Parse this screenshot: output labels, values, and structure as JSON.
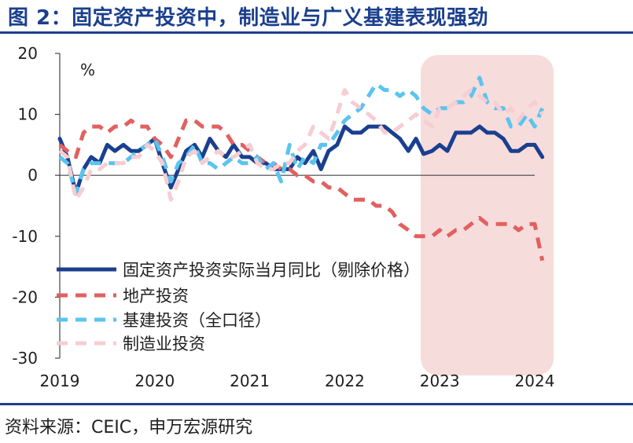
{
  "title": "图 2：固定资产投资中，制造业与广义基建表现强劲",
  "source": "资料来源：CEIC，申万宏源研究",
  "chart_data": {
    "type": "line",
    "ylabel": "%",
    "ylim": [
      -30,
      20
    ],
    "yticks": [
      -30,
      -20,
      -10,
      0,
      10,
      20
    ],
    "xlim": [
      2019.0,
      2024.0
    ],
    "xticks": [
      2019,
      2020,
      2021,
      2022,
      2023,
      2024
    ],
    "highlight": {
      "x_range": [
        2022.8,
        2024.2
      ],
      "color": "#f7dcdc"
    },
    "grid": false,
    "legend_position": "lower-left",
    "series": [
      {
        "name": "固定资产投资实际当月同比（剔除价格）",
        "color": "#1b3f8f",
        "style": "solid",
        "width": 5,
        "points": [
          [
            2019.0,
            6
          ],
          [
            2019.08,
            3
          ],
          [
            2019.17,
            -3
          ],
          [
            2019.25,
            1
          ],
          [
            2019.33,
            3
          ],
          [
            2019.42,
            2
          ],
          [
            2019.5,
            5
          ],
          [
            2019.58,
            4
          ],
          [
            2019.67,
            5
          ],
          [
            2019.75,
            4
          ],
          [
            2019.83,
            4
          ],
          [
            2019.92,
            5
          ],
          [
            2020.0,
            6
          ],
          [
            2020.08,
            2
          ],
          [
            2020.17,
            -2
          ],
          [
            2020.25,
            1
          ],
          [
            2020.33,
            4
          ],
          [
            2020.42,
            5
          ],
          [
            2020.5,
            3
          ],
          [
            2020.58,
            6
          ],
          [
            2020.67,
            4
          ],
          [
            2020.75,
            3
          ],
          [
            2020.83,
            5
          ],
          [
            2020.92,
            3
          ],
          [
            2021.0,
            3
          ],
          [
            2021.08,
            2
          ],
          [
            2021.17,
            2
          ],
          [
            2021.25,
            1
          ],
          [
            2021.33,
            1
          ],
          [
            2021.42,
            1
          ],
          [
            2021.5,
            3
          ],
          [
            2021.58,
            2
          ],
          [
            2021.67,
            4
          ],
          [
            2021.75,
            1
          ],
          [
            2021.83,
            4
          ],
          [
            2021.92,
            5
          ],
          [
            2022.0,
            8
          ],
          [
            2022.08,
            7
          ],
          [
            2022.17,
            7
          ],
          [
            2022.25,
            8
          ],
          [
            2022.33,
            8
          ],
          [
            2022.42,
            8
          ],
          [
            2022.5,
            7
          ],
          [
            2022.58,
            6
          ],
          [
            2022.67,
            4
          ],
          [
            2022.75,
            6
          ],
          [
            2022.83,
            3.5
          ],
          [
            2022.92,
            4
          ],
          [
            2023.0,
            5
          ],
          [
            2023.08,
            4
          ],
          [
            2023.17,
            7
          ],
          [
            2023.25,
            7
          ],
          [
            2023.33,
            7
          ],
          [
            2023.42,
            8
          ],
          [
            2023.5,
            7
          ],
          [
            2023.58,
            7
          ],
          [
            2023.67,
            6
          ],
          [
            2023.75,
            4
          ],
          [
            2023.83,
            4
          ],
          [
            2023.92,
            5
          ],
          [
            2024.0,
            5
          ],
          [
            2024.08,
            3
          ]
        ]
      },
      {
        "name": "地产投资",
        "color": "#e26060",
        "style": "dashed",
        "width": 5,
        "points": [
          [
            2019.0,
            5
          ],
          [
            2019.08,
            4
          ],
          [
            2019.17,
            3
          ],
          [
            2019.25,
            7
          ],
          [
            2019.33,
            8
          ],
          [
            2019.42,
            8
          ],
          [
            2019.5,
            7
          ],
          [
            2019.58,
            8
          ],
          [
            2019.67,
            8
          ],
          [
            2019.75,
            9
          ],
          [
            2019.83,
            8
          ],
          [
            2019.92,
            8
          ],
          [
            2020.0,
            6
          ],
          [
            2020.08,
            5
          ],
          [
            2020.17,
            3
          ],
          [
            2020.25,
            6
          ],
          [
            2020.33,
            9
          ],
          [
            2020.42,
            9
          ],
          [
            2020.5,
            8
          ],
          [
            2020.58,
            8
          ],
          [
            2020.67,
            8
          ],
          [
            2020.75,
            7
          ],
          [
            2020.83,
            5
          ],
          [
            2020.92,
            5
          ],
          [
            2021.0,
            4
          ],
          [
            2021.08,
            3
          ],
          [
            2021.17,
            2
          ],
          [
            2021.25,
            2
          ],
          [
            2021.33,
            1
          ],
          [
            2021.42,
            1
          ],
          [
            2021.5,
            0
          ],
          [
            2021.58,
            0
          ],
          [
            2021.67,
            -1
          ],
          [
            2021.75,
            -1
          ],
          [
            2021.83,
            -2
          ],
          [
            2021.92,
            -2
          ],
          [
            2022.0,
            -3
          ],
          [
            2022.08,
            -4
          ],
          [
            2022.17,
            -4
          ],
          [
            2022.25,
            -4
          ],
          [
            2022.33,
            -5
          ],
          [
            2022.42,
            -5
          ],
          [
            2022.5,
            -6
          ],
          [
            2022.58,
            -8
          ],
          [
            2022.67,
            -9
          ],
          [
            2022.75,
            -10
          ],
          [
            2022.83,
            -10
          ],
          [
            2022.92,
            -10
          ],
          [
            2023.0,
            -9
          ],
          [
            2023.08,
            -10
          ],
          [
            2023.17,
            -9
          ],
          [
            2023.25,
            -9
          ],
          [
            2023.33,
            -8
          ],
          [
            2023.42,
            -7
          ],
          [
            2023.5,
            -8
          ],
          [
            2023.58,
            -8
          ],
          [
            2023.67,
            -8
          ],
          [
            2023.75,
            -8
          ],
          [
            2023.83,
            -9
          ],
          [
            2023.92,
            -8
          ],
          [
            2024.0,
            -8
          ],
          [
            2024.08,
            -14
          ]
        ]
      },
      {
        "name": "基建投资（全口径）",
        "color": "#5bc4ee",
        "style": "dashed",
        "width": 5,
        "points": [
          [
            2019.0,
            3
          ],
          [
            2019.08,
            2
          ],
          [
            2019.17,
            -3
          ],
          [
            2019.25,
            1
          ],
          [
            2019.33,
            2
          ],
          [
            2019.42,
            2
          ],
          [
            2019.5,
            2
          ],
          [
            2019.58,
            2
          ],
          [
            2019.67,
            2
          ],
          [
            2019.75,
            3
          ],
          [
            2019.83,
            4
          ],
          [
            2019.92,
            5
          ],
          [
            2020.0,
            6
          ],
          [
            2020.08,
            3
          ],
          [
            2020.17,
            -1
          ],
          [
            2020.25,
            2
          ],
          [
            2020.33,
            3
          ],
          [
            2020.42,
            5
          ],
          [
            2020.5,
            2
          ],
          [
            2020.58,
            2
          ],
          [
            2020.67,
            1
          ],
          [
            2020.75,
            2
          ],
          [
            2020.83,
            3
          ],
          [
            2020.92,
            2
          ],
          [
            2021.0,
            2
          ],
          [
            2021.08,
            3
          ],
          [
            2021.17,
            1
          ],
          [
            2021.25,
            2
          ],
          [
            2021.33,
            -1
          ],
          [
            2021.42,
            5
          ],
          [
            2021.5,
            1
          ],
          [
            2021.58,
            3
          ],
          [
            2021.67,
            2
          ],
          [
            2021.75,
            5
          ],
          [
            2021.83,
            5
          ],
          [
            2021.92,
            7
          ],
          [
            2022.0,
            9
          ],
          [
            2022.08,
            10
          ],
          [
            2022.17,
            11
          ],
          [
            2022.25,
            13
          ],
          [
            2022.33,
            15
          ],
          [
            2022.42,
            14
          ],
          [
            2022.5,
            14
          ],
          [
            2022.58,
            13
          ],
          [
            2022.67,
            14
          ],
          [
            2022.75,
            13
          ],
          [
            2022.83,
            11
          ],
          [
            2022.92,
            10
          ],
          [
            2023.0,
            11
          ],
          [
            2023.08,
            11
          ],
          [
            2023.17,
            12
          ],
          [
            2023.25,
            12
          ],
          [
            2023.33,
            13
          ],
          [
            2023.42,
            16
          ],
          [
            2023.5,
            12
          ],
          [
            2023.58,
            11
          ],
          [
            2023.67,
            11
          ],
          [
            2023.75,
            8
          ],
          [
            2023.83,
            8
          ],
          [
            2023.92,
            10
          ],
          [
            2024.0,
            8
          ],
          [
            2024.08,
            11
          ]
        ]
      },
      {
        "name": "制造业投资",
        "color": "#f6cdd2",
        "style": "dashed",
        "width": 5,
        "points": [
          [
            2019.0,
            4
          ],
          [
            2019.08,
            3
          ],
          [
            2019.17,
            -4
          ],
          [
            2019.25,
            -2
          ],
          [
            2019.33,
            1
          ],
          [
            2019.42,
            1
          ],
          [
            2019.5,
            2
          ],
          [
            2019.58,
            2
          ],
          [
            2019.67,
            2
          ],
          [
            2019.75,
            3
          ],
          [
            2019.83,
            3
          ],
          [
            2019.92,
            5
          ],
          [
            2020.0,
            4
          ],
          [
            2020.08,
            2
          ],
          [
            2020.17,
            -4
          ],
          [
            2020.25,
            -1
          ],
          [
            2020.33,
            3
          ],
          [
            2020.42,
            4
          ],
          [
            2020.5,
            2
          ],
          [
            2020.58,
            3
          ],
          [
            2020.67,
            4
          ],
          [
            2020.75,
            3
          ],
          [
            2020.83,
            3
          ],
          [
            2020.92,
            4
          ],
          [
            2021.0,
            5
          ],
          [
            2021.08,
            2
          ],
          [
            2021.17,
            1
          ],
          [
            2021.25,
            1
          ],
          [
            2021.33,
            2
          ],
          [
            2021.42,
            2
          ],
          [
            2021.5,
            4
          ],
          [
            2021.58,
            5
          ],
          [
            2021.67,
            8
          ],
          [
            2021.75,
            7
          ],
          [
            2021.83,
            6
          ],
          [
            2021.92,
            10
          ],
          [
            2022.0,
            14
          ],
          [
            2022.08,
            12
          ],
          [
            2022.17,
            11
          ],
          [
            2022.25,
            10
          ],
          [
            2022.33,
            9
          ],
          [
            2022.42,
            7
          ],
          [
            2022.5,
            7
          ],
          [
            2022.58,
            8
          ],
          [
            2022.67,
            9
          ],
          [
            2022.75,
            10
          ],
          [
            2022.83,
            9
          ],
          [
            2022.92,
            8
          ],
          [
            2023.0,
            11
          ],
          [
            2023.08,
            11
          ],
          [
            2023.17,
            12
          ],
          [
            2023.25,
            13
          ],
          [
            2023.33,
            14
          ],
          [
            2023.42,
            13
          ],
          [
            2023.5,
            12
          ],
          [
            2023.58,
            12
          ],
          [
            2023.67,
            10
          ],
          [
            2023.75,
            11
          ],
          [
            2023.83,
            9
          ],
          [
            2023.92,
            11
          ],
          [
            2024.0,
            12
          ],
          [
            2024.08,
            10
          ]
        ]
      }
    ]
  }
}
